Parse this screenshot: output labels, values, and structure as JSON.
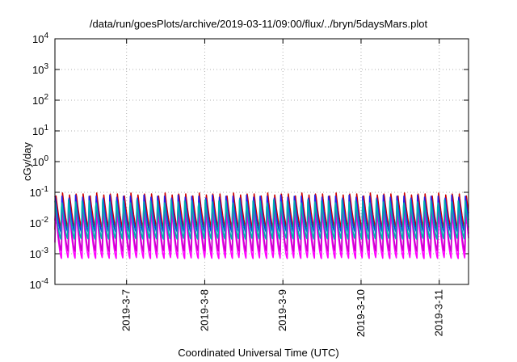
{
  "chart_data": {
    "type": "line",
    "title": "/data/run/goesPlots/archive/2019-03-11/09:00/flux/../bryn/5daysMars.plot",
    "xlabel": "Coordinated Universal Time (UTC)",
    "ylabel": "cGy/day",
    "y_scale": "log",
    "ylim": [
      0.0001,
      10000
    ],
    "y_ticks": [
      {
        "base": "10",
        "exp": "-4"
      },
      {
        "base": "10",
        "exp": "-3"
      },
      {
        "base": "10",
        "exp": "-2"
      },
      {
        "base": "10",
        "exp": "-1"
      },
      {
        "base": "10",
        "exp": "0"
      },
      {
        "base": "10",
        "exp": "1"
      },
      {
        "base": "10",
        "exp": "2"
      },
      {
        "base": "10",
        "exp": "3"
      },
      {
        "base": "10",
        "exp": "4"
      }
    ],
    "xlim": [
      "2019-03-06T02:00",
      "2019-03-11T09:00"
    ],
    "x_ticks": [
      "2019-3-7",
      "2019-3-8",
      "2019-3-9",
      "2019-3-10",
      "2019-3-11"
    ],
    "grid": true,
    "pattern": {
      "period_hours": 2.1,
      "description": "sawtooth pulses: sharp rise then decay"
    },
    "series": [
      {
        "color": "#cc0000",
        "peak": 0.1,
        "trough": 0.006
      },
      {
        "color": "#ff00ff",
        "peak": 0.03,
        "trough": 0.0007
      },
      {
        "color": "#cc00cc",
        "peak": 0.045,
        "trough": 0.0012
      },
      {
        "color": "#2222ee",
        "peak": 0.085,
        "trough": 0.005
      },
      {
        "color": "#00b0b0",
        "peak": 0.06,
        "trough": 0.003
      }
    ]
  }
}
